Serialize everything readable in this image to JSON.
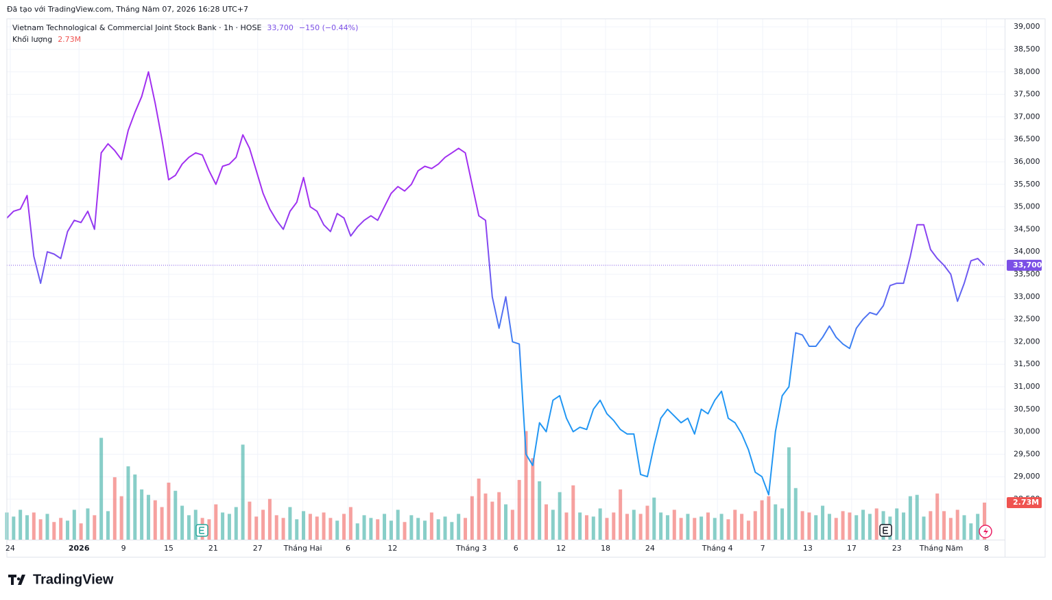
{
  "chart_data": {
    "type": "line",
    "header": "Đã tạo với TradingView.com, Tháng Năm 07, 2026 16:28 UTC+7",
    "title": "Vietnam Technological & Commercial Joint Stock Bank · 1h · HOSE",
    "last_price": 33700,
    "last_price_label": "33,700",
    "change": "−150 (−0.44%)",
    "volume_title": "Khối lượng",
    "last_volume": 2.73,
    "last_volume_label": "2.73M",
    "logo_text": "TradingView",
    "colors": [
      "#a12ff0",
      "#2196f3"
    ],
    "volume_colors": {
      "up": "rgba(38,166,154,0.55)",
      "down": "rgba(239,83,80,0.55)"
    },
    "values": [
      34750,
      34900,
      34950,
      35250,
      33900,
      33300,
      34000,
      33950,
      33850,
      34450,
      34700,
      34650,
      34900,
      34500,
      36200,
      36400,
      36250,
      36050,
      36700,
      37100,
      37450,
      38000,
      37300,
      36500,
      35600,
      35700,
      35950,
      36100,
      36200,
      36150,
      35800,
      35500,
      35900,
      35950,
      36100,
      36600,
      36300,
      35800,
      35300,
      34950,
      34700,
      34500,
      34900,
      35100,
      35650,
      35000,
      34900,
      34600,
      34450,
      34850,
      34750,
      34350,
      34550,
      34700,
      34800,
      34700,
      35000,
      35300,
      35450,
      35350,
      35500,
      35800,
      35900,
      35850,
      35950,
      36100,
      36200,
      36300,
      36200,
      35500,
      34800,
      34700,
      33000,
      32300,
      33000,
      32000,
      31950,
      29500,
      29250,
      30200,
      30000,
      30700,
      30800,
      30300,
      30000,
      30100,
      30050,
      30500,
      30700,
      30400,
      30250,
      30050,
      29950,
      29950,
      29050,
      29000,
      29700,
      30300,
      30500,
      30350,
      30200,
      30300,
      29950,
      30500,
      30400,
      30700,
      30900,
      30300,
      30200,
      29950,
      29600,
      29100,
      29000,
      28600,
      30000,
      30800,
      31000,
      32200,
      32150,
      31900,
      31900,
      32100,
      32350,
      32100,
      31950,
      31850,
      32300,
      32500,
      32650,
      32600,
      32800,
      33250,
      33300,
      33300,
      33900,
      34600,
      34600,
      34050,
      33850,
      33700,
      33500,
      32900,
      33300,
      33800,
      33850,
      33700
    ],
    "volume": [
      2.0,
      1.7,
      2.2,
      1.8,
      2.0,
      1.5,
      1.9,
      1.3,
      1.6,
      1.4,
      2.2,
      1.2,
      2.3,
      1.8,
      7.5,
      2.1,
      4.6,
      3.2,
      5.4,
      4.8,
      3.7,
      3.3,
      2.9,
      2.4,
      4.2,
      3.6,
      2.5,
      1.8,
      2.2,
      1.6,
      1.5,
      2.6,
      2.0,
      1.9,
      2.4,
      7.0,
      2.8,
      1.7,
      2.2,
      3.0,
      1.8,
      1.6,
      2.4,
      1.5,
      2.1,
      1.9,
      1.7,
      2.0,
      1.6,
      1.4,
      1.9,
      2.4,
      1.2,
      1.8,
      1.6,
      1.5,
      1.9,
      1.4,
      2.2,
      1.3,
      1.8,
      1.6,
      1.4,
      2.0,
      1.5,
      1.7,
      1.3,
      1.9,
      1.6,
      3.2,
      4.5,
      3.4,
      2.8,
      3.5,
      2.6,
      2.2,
      4.4,
      8.0,
      6.0,
      4.3,
      2.6,
      2.2,
      3.5,
      2.0,
      4.0,
      2.0,
      1.8,
      1.7,
      2.3,
      1.6,
      2.0,
      3.7,
      1.9,
      2.2,
      1.9,
      2.5,
      3.1,
      2.0,
      1.8,
      2.2,
      1.6,
      1.9,
      1.6,
      1.7,
      2.0,
      1.6,
      1.9,
      1.5,
      2.2,
      1.9,
      1.4,
      2.1,
      2.9,
      3.2,
      2.6,
      2.3,
      6.8,
      3.8,
      2.1,
      2.0,
      1.8,
      2.5,
      1.9,
      1.6,
      2.1,
      2.0,
      1.8,
      2.2,
      1.9,
      2.3,
      2.1,
      1.7,
      2.3,
      2.0,
      3.2,
      3.3,
      1.7,
      2.1,
      3.4,
      2.1,
      1.6,
      2.2,
      1.8,
      1.2,
      1.9,
      2.73
    ],
    "volume_lim": [
      0,
      10
    ],
    "xlim": [
      0,
      148
    ],
    "xticks": [
      {
        "value": 0.5,
        "label": "24"
      },
      {
        "value": 10.7,
        "label": "2026"
      },
      {
        "value": 17.3,
        "label": "9"
      },
      {
        "value": 24.0,
        "label": "15"
      },
      {
        "value": 30.6,
        "label": "21"
      },
      {
        "value": 37.2,
        "label": "27"
      },
      {
        "value": 43.9,
        "label": "Tháng Hai"
      },
      {
        "value": 50.6,
        "label": "6"
      },
      {
        "value": 57.2,
        "label": "12"
      },
      {
        "value": 68.9,
        "label": "Tháng 3"
      },
      {
        "value": 75.5,
        "label": "6"
      },
      {
        "value": 82.2,
        "label": "12"
      },
      {
        "value": 88.8,
        "label": "18"
      },
      {
        "value": 95.4,
        "label": "24"
      },
      {
        "value": 105.4,
        "label": "Tháng 4"
      },
      {
        "value": 112.1,
        "label": "7"
      },
      {
        "value": 118.8,
        "label": "13"
      },
      {
        "value": 125.3,
        "label": "17"
      },
      {
        "value": 132.0,
        "label": "23"
      },
      {
        "value": 138.6,
        "label": "Tháng Năm"
      },
      {
        "value": 145.3,
        "label": "8"
      }
    ],
    "ylim": [
      27220,
      39170
    ],
    "yticks": [
      {
        "value": 28500,
        "label": "28,500"
      },
      {
        "value": 29000,
        "label": "29,000"
      },
      {
        "value": 29500,
        "label": "29,500"
      },
      {
        "value": 30000,
        "label": "30,000"
      },
      {
        "value": 30500,
        "label": "30,500"
      },
      {
        "value": 31000,
        "label": "31,000"
      },
      {
        "value": 31500,
        "label": "31,500"
      },
      {
        "value": 32000,
        "label": "32,000"
      },
      {
        "value": 32500,
        "label": "32,500"
      },
      {
        "value": 33000,
        "label": "33,000"
      },
      {
        "value": 33500,
        "label": "33,500"
      },
      {
        "value": 34000,
        "label": "34,000"
      },
      {
        "value": 34500,
        "label": "34,500"
      },
      {
        "value": 35000,
        "label": "35,000"
      },
      {
        "value": 35500,
        "label": "35,500"
      },
      {
        "value": 36000,
        "label": "36,000"
      },
      {
        "value": 36500,
        "label": "36,500"
      },
      {
        "value": 37000,
        "label": "37,000"
      },
      {
        "value": 37500,
        "label": "37,500"
      },
      {
        "value": 38000,
        "label": "38,000"
      },
      {
        "value": 38500,
        "label": "38,500"
      },
      {
        "value": 39000,
        "label": "39,000"
      }
    ],
    "grid": true
  }
}
